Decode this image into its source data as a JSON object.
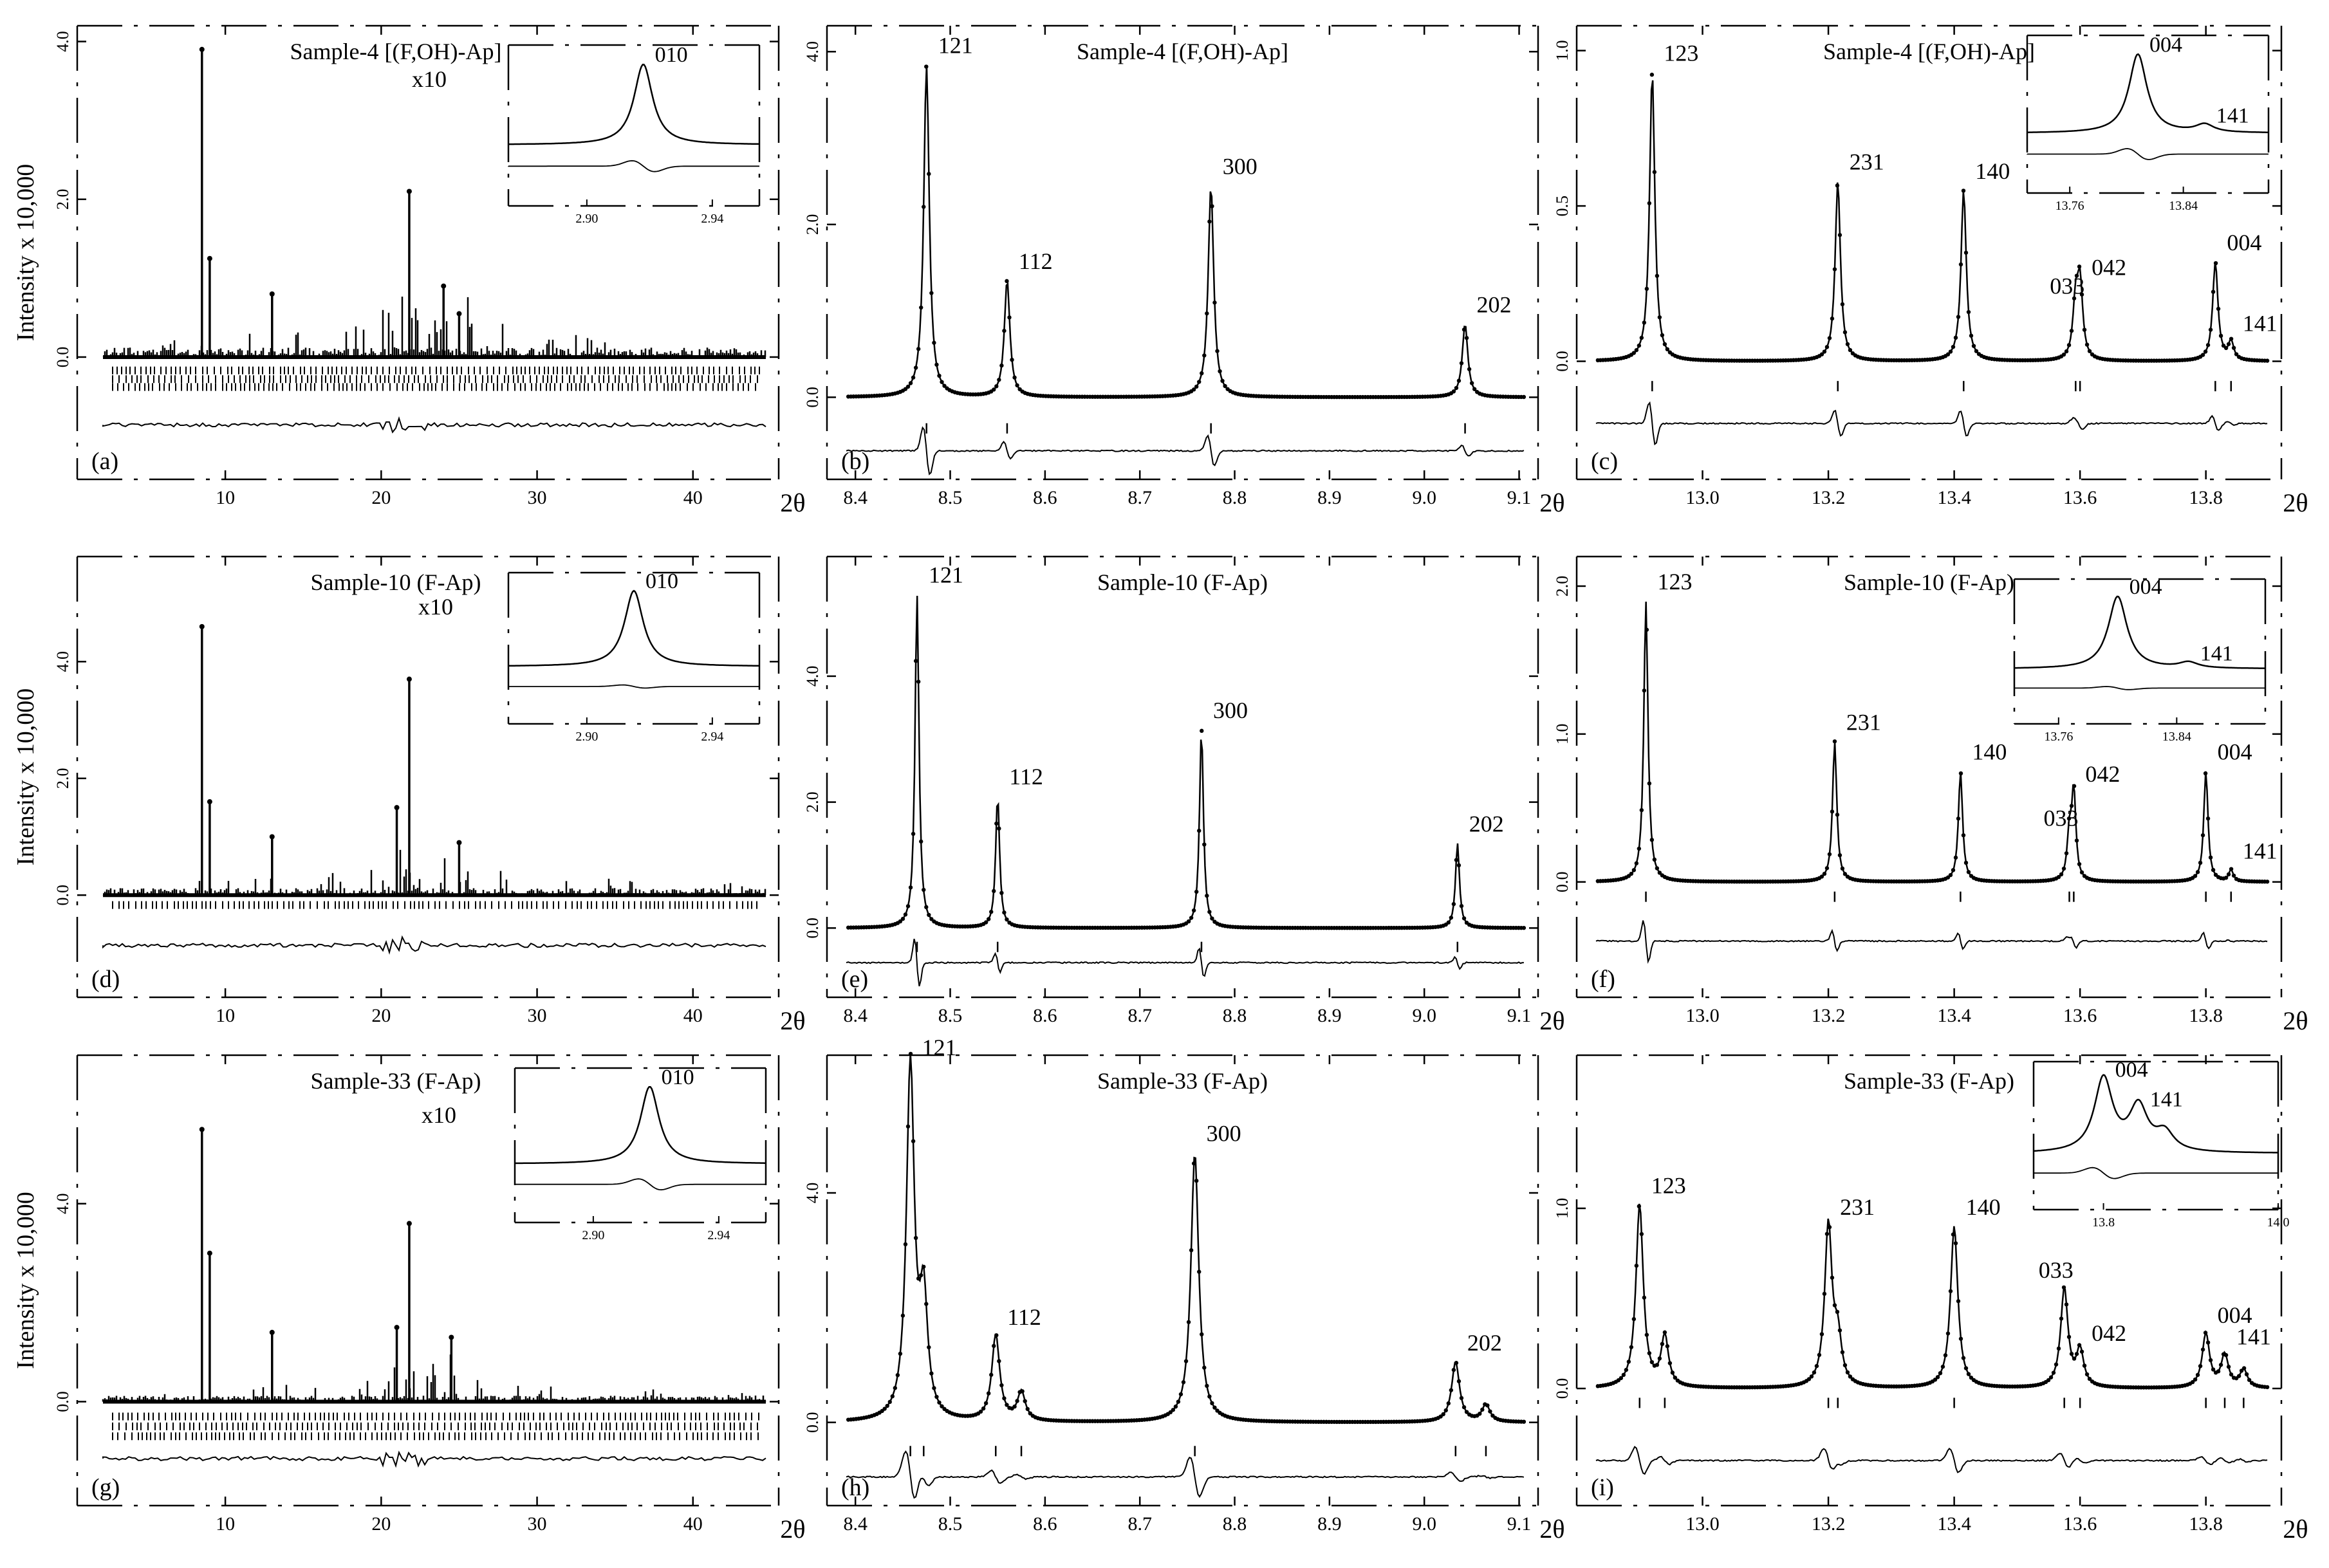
{
  "figure": {
    "axis_unit": "2θ",
    "y_label": "Intensity x 10,000"
  },
  "chart_data": [
    {
      "id": "a",
      "panel_label": "(a)",
      "type": "line",
      "title": "Sample-4  [(F,OH)-Ap]",
      "xlabel": "2θ",
      "ylabel": "Intensity x 10,000",
      "xlim": [
        0.5,
        45.5
      ],
      "ylim": [
        -1.55,
        4.2
      ],
      "x_ticks": [
        10,
        20,
        30,
        40
      ],
      "x_tick_labels": [
        "10",
        "20",
        "30",
        "40"
      ],
      "y_ticks": [
        0.0,
        2.0,
        4.0
      ],
      "y_tick_labels": [
        "0.0",
        "2.0",
        "4.0"
      ],
      "profile": "wide",
      "baseline": 0,
      "tick_rows": [
        -0.17,
        -0.28,
        -0.38
      ],
      "diff_level": -0.86,
      "peaks": [
        {
          "x": 8.5,
          "h": 3.9
        },
        {
          "x": 9.0,
          "h": 1.25
        },
        {
          "x": 13.0,
          "h": 0.8
        },
        {
          "x": 21.8,
          "h": 2.1
        },
        {
          "x": 24.0,
          "h": 0.9
        },
        {
          "x": 25.0,
          "h": 0.55
        }
      ],
      "scale_note": "x10",
      "inset": {
        "type": "line",
        "xlim": [
          2.875,
          2.955
        ],
        "x_ticks": [
          2.9,
          2.94
        ],
        "x_tick_labels": [
          "2.90",
          "2.94"
        ],
        "peaks": [
          {
            "x": 2.918,
            "h": 1.0,
            "label": "010"
          }
        ],
        "diff_pattern": "dip"
      }
    },
    {
      "id": "b",
      "panel_label": "(b)",
      "type": "line",
      "title": "Sample-4  [(F,OH)-Ap]",
      "xlabel": "2θ",
      "ylabel": "Intensity x 10,000",
      "xlim": [
        8.37,
        9.12
      ],
      "ylim": [
        -0.95,
        4.3
      ],
      "x_ticks": [
        8.4,
        8.5,
        8.6,
        8.7,
        8.8,
        8.9,
        9.0,
        9.1
      ],
      "x_tick_labels": [
        "8.4",
        "8.5",
        "8.6",
        "8.7",
        "8.8",
        "8.9",
        "9.0",
        "9.1"
      ],
      "y_ticks": [
        0.0,
        2.0,
        4.0
      ],
      "y_tick_labels": [
        "0.0",
        "2.0",
        "4.0"
      ],
      "profile": "peaks",
      "width": 0.0035,
      "baseline": 0,
      "tick_row": -0.36,
      "diff_level": -0.62,
      "peaks": [
        {
          "x": 8.475,
          "h": 3.85,
          "label": "121"
        },
        {
          "x": 8.56,
          "h": 1.35,
          "label": "112"
        },
        {
          "x": 8.775,
          "h": 2.45,
          "label": "300"
        },
        {
          "x": 9.043,
          "h": 0.85,
          "label": "202"
        }
      ]
    },
    {
      "id": "c",
      "panel_label": "(c)",
      "type": "line",
      "title": "Sample-4  [(F,OH)-Ap]",
      "xlabel": "2θ",
      "ylabel": "Intensity x 10,000",
      "xlim": [
        12.8,
        13.92
      ],
      "ylim": [
        -0.38,
        1.08
      ],
      "x_ticks": [
        13.0,
        13.2,
        13.4,
        13.6,
        13.8
      ],
      "x_tick_labels": [
        "13.0",
        "13.2",
        "13.4",
        "13.6",
        "13.8"
      ],
      "y_ticks": [
        0.0,
        0.5,
        1.0
      ],
      "y_tick_labels": [
        "0.0",
        "0.5",
        "1.0"
      ],
      "profile": "peaks",
      "width": 0.005,
      "baseline": 0,
      "tick_row": -0.08,
      "diff_level": -0.2,
      "peaks": [
        {
          "x": 12.92,
          "h": 0.93,
          "label": "123"
        },
        {
          "x": 13.215,
          "h": 0.58,
          "label": "231"
        },
        {
          "x": 13.415,
          "h": 0.55,
          "label": "140"
        },
        {
          "x": 13.593,
          "h": 0.18,
          "label": "033"
        },
        {
          "x": 13.6,
          "h": 0.24,
          "label": "042"
        },
        {
          "x": 13.815,
          "h": 0.32,
          "label": "004"
        },
        {
          "x": 13.84,
          "h": 0.06,
          "label": "141"
        }
      ],
      "inset": {
        "type": "line",
        "xlim": [
          13.73,
          13.9
        ],
        "x_ticks": [
          13.76,
          13.84
        ],
        "x_tick_labels": [
          "13.76",
          "13.84"
        ],
        "peaks": [
          {
            "x": 13.808,
            "h": 1.0,
            "label": "004"
          },
          {
            "x": 13.855,
            "h": 0.1,
            "label": "141"
          }
        ],
        "diff_pattern": "wiggle"
      }
    },
    {
      "id": "d",
      "panel_label": "(d)",
      "type": "line",
      "title": "Sample-10 (F-Ap)",
      "xlabel": "2θ",
      "ylabel": "Intensity x 10,000",
      "xlim": [
        0.5,
        45.5
      ],
      "ylim": [
        -1.75,
        5.8
      ],
      "x_ticks": [
        10,
        20,
        30,
        40
      ],
      "x_tick_labels": [
        "10",
        "20",
        "30",
        "40"
      ],
      "y_ticks": [
        0.0,
        2.0,
        4.0
      ],
      "y_tick_labels": [
        "0.0",
        "2.0",
        "4.0"
      ],
      "profile": "wide",
      "baseline": 0,
      "tick_rows": [
        -0.17
      ],
      "diff_level": -0.86,
      "peaks": [
        {
          "x": 8.5,
          "h": 4.6
        },
        {
          "x": 9.0,
          "h": 1.6
        },
        {
          "x": 13.0,
          "h": 1.0
        },
        {
          "x": 21.8,
          "h": 3.7
        },
        {
          "x": 21.0,
          "h": 1.5
        },
        {
          "x": 25.0,
          "h": 0.9
        }
      ],
      "scale_note": "x10",
      "inset": {
        "type": "line",
        "xlim": [
          2.875,
          2.955
        ],
        "x_ticks": [
          2.9,
          2.94
        ],
        "x_tick_labels": [
          "2.90",
          "2.94"
        ],
        "peaks": [
          {
            "x": 2.915,
            "h": 1.0,
            "label": "010"
          }
        ],
        "diff_pattern": "small"
      }
    },
    {
      "id": "e",
      "panel_label": "(e)",
      "type": "line",
      "title": "Sample-10 (F-Ap)",
      "xlabel": "2θ",
      "ylabel": "Intensity x 10,000",
      "xlim": [
        8.37,
        9.12
      ],
      "ylim": [
        -1.1,
        5.9
      ],
      "x_ticks": [
        8.4,
        8.5,
        8.6,
        8.7,
        8.8,
        8.9,
        9.0,
        9.1
      ],
      "x_tick_labels": [
        "8.4",
        "8.5",
        "8.6",
        "8.7",
        "8.8",
        "8.9",
        "9.0",
        "9.1"
      ],
      "y_ticks": [
        0.0,
        2.0,
        4.0
      ],
      "y_tick_labels": [
        "0.0",
        "2.0",
        "4.0"
      ],
      "profile": "peaks",
      "width": 0.0025,
      "baseline": 0,
      "tick_row": -0.3,
      "diff_level": -0.55,
      "peaks": [
        {
          "x": 8.465,
          "h": 5.3,
          "label": "121"
        },
        {
          "x": 8.55,
          "h": 2.1,
          "label": "112"
        },
        {
          "x": 8.765,
          "h": 3.15,
          "label": "300"
        },
        {
          "x": 9.035,
          "h": 1.35,
          "label": "202"
        }
      ]
    },
    {
      "id": "f",
      "panel_label": "(f)",
      "type": "line",
      "title": "Sample-10 (F-Ap)",
      "xlabel": "2θ",
      "ylabel": "Intensity x 10,000",
      "xlim": [
        12.8,
        13.92
      ],
      "ylim": [
        -0.78,
        2.2
      ],
      "x_ticks": [
        13.0,
        13.2,
        13.4,
        13.6,
        13.8
      ],
      "x_tick_labels": [
        "13.0",
        "13.2",
        "13.4",
        "13.6",
        "13.8"
      ],
      "y_ticks": [
        0.0,
        1.0,
        2.0
      ],
      "y_tick_labels": [
        "0.0",
        "1.0",
        "2.0"
      ],
      "profile": "peaks",
      "width": 0.004,
      "baseline": 0,
      "tick_row": -0.1,
      "diff_level": -0.4,
      "peaks": [
        {
          "x": 12.91,
          "h": 1.9,
          "label": "123"
        },
        {
          "x": 13.21,
          "h": 0.95,
          "label": "231"
        },
        {
          "x": 13.41,
          "h": 0.75,
          "label": "140"
        },
        {
          "x": 13.583,
          "h": 0.3,
          "label": "033"
        },
        {
          "x": 13.59,
          "h": 0.6,
          "label": "042"
        },
        {
          "x": 13.8,
          "h": 0.75,
          "label": "004"
        },
        {
          "x": 13.84,
          "h": 0.08,
          "label": "141"
        }
      ],
      "inset": {
        "type": "line",
        "xlim": [
          13.73,
          13.9
        ],
        "x_ticks": [
          13.76,
          13.84
        ],
        "x_tick_labels": [
          "13.76",
          "13.84"
        ],
        "peaks": [
          {
            "x": 13.8,
            "h": 1.0,
            "label": "004"
          },
          {
            "x": 13.848,
            "h": 0.08,
            "label": "141"
          }
        ],
        "diff_pattern": "small"
      }
    },
    {
      "id": "g",
      "panel_label": "(g)",
      "type": "line",
      "title": "Sample-33 (F-Ap)",
      "xlabel": "2θ",
      "ylabel": "Intensity x 10,000",
      "xlim": [
        0.5,
        45.5
      ],
      "ylim": [
        -2.1,
        7.0
      ],
      "x_ticks": [
        10,
        20,
        30,
        40
      ],
      "x_tick_labels": [
        "10",
        "20",
        "30",
        "40"
      ],
      "y_ticks": [
        0.0,
        4.0
      ],
      "y_tick_labels": [
        "0.0",
        "4.0"
      ],
      "profile": "wide",
      "baseline": 0,
      "tick_rows": [
        -0.3,
        -0.5,
        -0.7
      ],
      "diff_level": -1.15,
      "peaks": [
        {
          "x": 8.5,
          "h": 5.5
        },
        {
          "x": 9.0,
          "h": 3.0
        },
        {
          "x": 13.0,
          "h": 1.4
        },
        {
          "x": 21.8,
          "h": 3.6
        },
        {
          "x": 21.0,
          "h": 1.5
        },
        {
          "x": 24.5,
          "h": 1.3
        }
      ],
      "scale_note": "x10",
      "inset": {
        "type": "line",
        "xlim": [
          2.875,
          2.955
        ],
        "x_ticks": [
          2.9,
          2.94
        ],
        "x_tick_labels": [
          "2.90",
          "2.94"
        ],
        "peaks": [
          {
            "x": 2.918,
            "h": 1.0,
            "label": "010"
          }
        ],
        "diff_pattern": "dip"
      }
    },
    {
      "id": "h",
      "panel_label": "(h)",
      "type": "line",
      "title": "Sample-33 (F-Ap)",
      "xlabel": "2θ",
      "ylabel": "Intensity x 10,000",
      "xlim": [
        8.37,
        9.12
      ],
      "ylim": [
        -1.45,
        6.4
      ],
      "x_ticks": [
        8.4,
        8.5,
        8.6,
        8.7,
        8.8,
        8.9,
        9.0,
        9.1
      ],
      "x_tick_labels": [
        "8.4",
        "8.5",
        "8.6",
        "8.7",
        "8.8",
        "8.9",
        "9.0",
        "9.1"
      ],
      "y_ticks": [
        0.0,
        4.0
      ],
      "y_tick_labels": [
        "0.0",
        "4.0"
      ],
      "profile": "peaks",
      "width": 0.005,
      "baseline": 0,
      "tick_row": -0.5,
      "diff_level": -0.95,
      "peaks": [
        {
          "x": 8.458,
          "h": 6.2,
          "label": "121"
        },
        {
          "x": 8.472,
          "h": 2.0
        },
        {
          "x": 8.548,
          "h": 1.5,
          "label": "112"
        },
        {
          "x": 8.575,
          "h": 0.5
        },
        {
          "x": 8.758,
          "h": 4.7,
          "label": "300"
        },
        {
          "x": 9.033,
          "h": 1.05,
          "label": "202"
        },
        {
          "x": 9.065,
          "h": 0.3
        }
      ]
    },
    {
      "id": "i",
      "panel_label": "(i)",
      "type": "line",
      "title": "Sample-33 (F-Ap)",
      "xlabel": "2θ",
      "ylabel": "Intensity x 10,000",
      "xlim": [
        12.8,
        13.92
      ],
      "ylim": [
        -0.65,
        1.85
      ],
      "x_ticks": [
        13.0,
        13.2,
        13.4,
        13.6,
        13.8
      ],
      "x_tick_labels": [
        "13.0",
        "13.2",
        "13.4",
        "13.6",
        "13.8"
      ],
      "y_ticks": [
        0.0,
        1.0
      ],
      "y_tick_labels": [
        "0.0",
        "1.0"
      ],
      "profile": "peaks",
      "width": 0.007,
      "baseline": 0,
      "tick_row": -0.08,
      "diff_level": -0.4,
      "peaks": [
        {
          "x": 12.9,
          "h": 1.02,
          "label": "123"
        },
        {
          "x": 12.94,
          "h": 0.28
        },
        {
          "x": 13.2,
          "h": 0.9,
          "label": "231"
        },
        {
          "x": 13.215,
          "h": 0.25
        },
        {
          "x": 13.4,
          "h": 0.9,
          "label": "140"
        },
        {
          "x": 13.575,
          "h": 0.55,
          "label": "033"
        },
        {
          "x": 13.6,
          "h": 0.2,
          "label": "042"
        },
        {
          "x": 13.8,
          "h": 0.3,
          "label": "004"
        },
        {
          "x": 13.83,
          "h": 0.18,
          "label": "141"
        },
        {
          "x": 13.86,
          "h": 0.1
        }
      ],
      "inset": {
        "type": "line",
        "xlim": [
          13.72,
          14.0
        ],
        "x_ticks": [
          13.8,
          14.0
        ],
        "x_tick_labels": [
          "13.8",
          "14.0"
        ],
        "peaks": [
          {
            "x": 13.8,
            "h": 1.0,
            "label": "004"
          },
          {
            "x": 13.84,
            "h": 0.6,
            "label": "141"
          },
          {
            "x": 13.87,
            "h": 0.25
          }
        ],
        "diff_pattern": "wiggle"
      }
    }
  ]
}
